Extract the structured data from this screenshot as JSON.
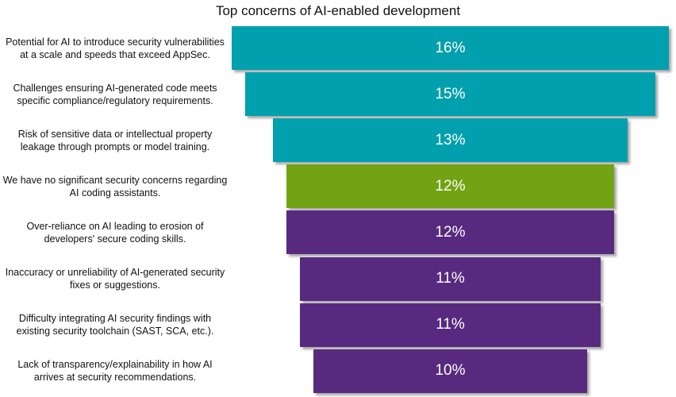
{
  "chart_data": {
    "type": "bar",
    "orientation": "horizontal-funnel",
    "title": "Top concerns of AI-enabled development",
    "categories": [
      "Potential for AI to introduce security vulnerabilities at a scale and speeds that exceed AppSec.",
      "Challenges ensuring AI-generated code meets specific compliance/regulatory requirements.",
      "Risk of sensitive data or intellectual property leakage through prompts or model training.",
      "We have no significant security concerns regarding AI coding assistants.",
      "Over-reliance on AI leading to erosion of developers' secure coding skills.",
      "Inaccuracy or unreliability of AI-generated security fixes or suggestions.",
      "Difficulty integrating AI security findings with existing security toolchain (SAST, SCA, etc.).",
      "Lack of transparency/explainability in how AI arrives at security recommendations."
    ],
    "values": [
      16,
      15,
      13,
      12,
      12,
      11,
      11,
      10
    ],
    "labels": [
      "16%",
      "15%",
      "13%",
      "12%",
      "12%",
      "11%",
      "11%",
      "10%"
    ],
    "unit": "%",
    "colors": [
      "#00A0AE",
      "#00A0AE",
      "#00A0AE",
      "#72A315",
      "#582A7F",
      "#582A7F",
      "#582A7F",
      "#582A7F"
    ],
    "grid": false,
    "legend": "none"
  }
}
